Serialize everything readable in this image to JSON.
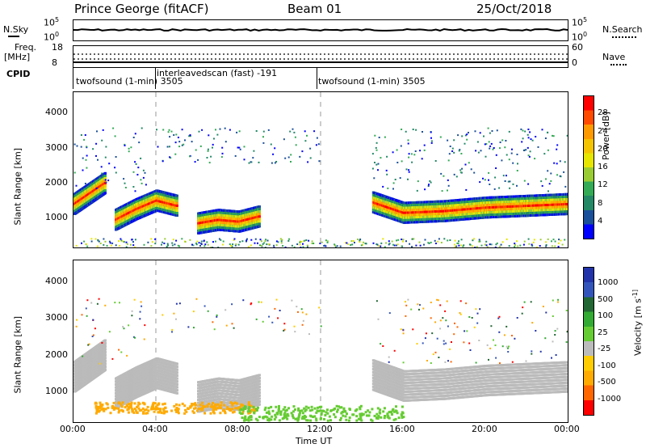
{
  "header": {
    "station": "Prince George (fitACF)",
    "beam": "Beam 01",
    "date": "25/Oct/2018"
  },
  "top_panels": {
    "nsky_label": "N.Sky",
    "nsky_ticks": [
      "10^5",
      "10^0"
    ],
    "nsearch_label": "N.Search",
    "nsearch_ticks": [
      "10^5",
      "10^0"
    ],
    "freq_label_1": "Freq.",
    "freq_label_2": "[MHz]",
    "freq_ticks": [
      "18",
      "8"
    ],
    "nave_label": "Nave",
    "nave_ticks": [
      "60",
      "0"
    ],
    "cpid_label": "CPID",
    "cpid_entries": [
      {
        "text": "twofsound (1-min) 3505",
        "start_hour": 0
      },
      {
        "text": "interleavedscan (fast) -191",
        "start_hour": 4
      },
      {
        "text": "twofsound (1-min) 3505",
        "start_hour": 12
      }
    ]
  },
  "power_colorbar": {
    "label": "Power [dB]",
    "ticks": [
      "28",
      "24",
      "20",
      "16",
      "12",
      "8",
      "4"
    ],
    "colors": [
      "#ff0000",
      "#ff4a00",
      "#ff9900",
      "#f5c400",
      "#e6e600",
      "#99cc33",
      "#33aa55",
      "#228866",
      "#1a4f9a",
      "#0000ff"
    ]
  },
  "velocity_colorbar": {
    "label": "Velocity [m s^-1]",
    "ticks": [
      "1000",
      "500",
      "100",
      "25",
      "-25",
      "-100",
      "-500",
      "-1000"
    ],
    "colors": [
      "#2233aa",
      "#3355bb",
      "#226633",
      "#33aa33",
      "#66cc33",
      "#bbbbbb",
      "#ffcc00",
      "#ffaa00",
      "#ff6600",
      "#ff0000"
    ]
  },
  "chart_data": [
    {
      "type": "heatmap",
      "name": "power",
      "ylabel": "Slant Range [km]",
      "xlabel": "",
      "x_ticks": [
        "00:00",
        "04:00",
        "08:00",
        "12:00",
        "16:00",
        "20:00",
        "00:00"
      ],
      "xlim_hours": [
        0,
        24
      ],
      "y_ticks": [
        1000,
        2000,
        3000,
        4000
      ],
      "ylim": [
        180,
        4600
      ],
      "series": [
        {
          "echo_band": "early",
          "hours": [
            0.0,
            0.5,
            1.0,
            1.5
          ],
          "range_km": [
            1450,
            1650,
            1850,
            2050
          ]
        },
        {
          "echo_band": "morning",
          "hours": [
            2.0,
            3.0,
            4.0,
            5.0
          ],
          "range_km": [
            1000,
            1300,
            1550,
            1400
          ]
        },
        {
          "echo_band": "mid-morning",
          "hours": [
            6.0,
            7.0,
            8.0,
            9.0
          ],
          "range_km": [
            900,
            1000,
            950,
            1100
          ]
        },
        {
          "echo_band": "evening",
          "hours": [
            14.5,
            16.0,
            18.0,
            20.0,
            22.0,
            24.0
          ],
          "range_km": [
            1500,
            1200,
            1250,
            1350,
            1400,
            1450
          ]
        }
      ]
    },
    {
      "type": "heatmap",
      "name": "velocity",
      "ylabel": "Slant Range [km]",
      "xlabel": "Time UT",
      "x_ticks": [
        "00:00",
        "04:00",
        "08:00",
        "12:00",
        "16:00",
        "20:00",
        "00:00"
      ],
      "xlim_hours": [
        0,
        24
      ],
      "y_ticks": [
        1000,
        2000,
        3000,
        4000
      ],
      "ylim": [
        180,
        4600
      ]
    }
  ]
}
